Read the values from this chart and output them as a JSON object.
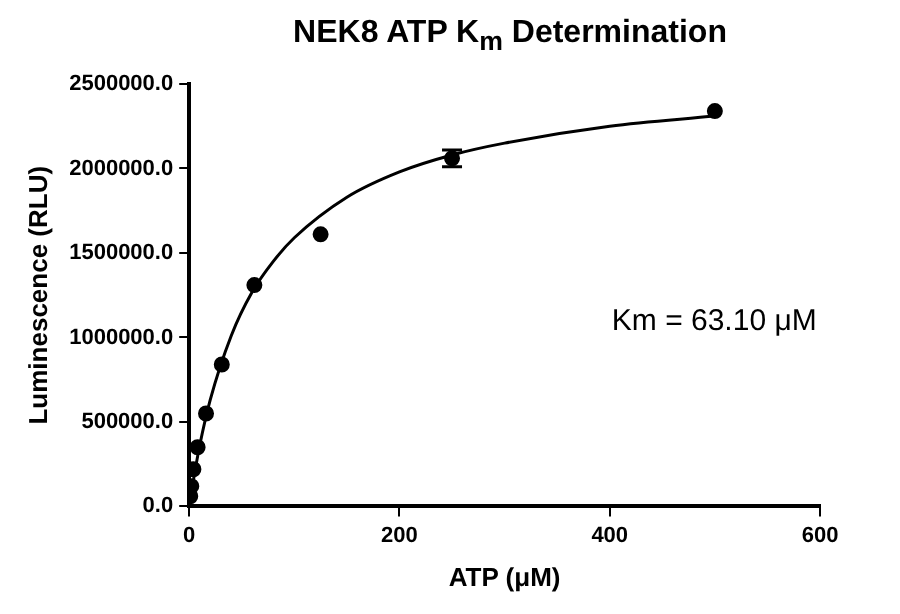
{
  "chart_data": {
    "type": "scatter",
    "title": "NEK8 ATP K$_{m}$ Determination",
    "xlabel": "ATP (μM)",
    "ylabel": "Luminescence (RLU)",
    "annotations": [
      "Km = 63.10 μM"
    ],
    "series": [
      {
        "color": "#000000",
        "marker": "circle",
        "x": [
          1,
          2,
          4,
          8,
          16,
          31,
          62,
          125,
          250,
          500
        ],
        "values": [
          60000,
          120000,
          220000,
          350000,
          550000,
          840000,
          1310000,
          1610000,
          2060000,
          2340000
        ],
        "errors": [
          null,
          null,
          null,
          null,
          null,
          null,
          null,
          null,
          50000,
          null
        ]
      },
      {
        "type": "line",
        "color": "#000000",
        "marker": "none",
        "line_style": "solid",
        "x": [
          0,
          5,
          10,
          20,
          40,
          60,
          80,
          100,
          150,
          200,
          250,
          300,
          400,
          500
        ],
        "values": [
          0,
          190000,
          360000,
          630000,
          1010000,
          1270000,
          1450000,
          1590000,
          1830000,
          1980000,
          2080000,
          2150000,
          2250000,
          2310000
        ]
      }
    ],
    "xlim": [
      0,
      600
    ],
    "xticks": [
      0,
      200,
      400,
      600
    ],
    "ylim": [
      0,
      2500000
    ],
    "yticks": [
      {
        "value": 0,
        "label": "0.0"
      },
      {
        "value": 500000,
        "label": "500000.0"
      },
      {
        "value": 1000000,
        "label": "1000000.0"
      },
      {
        "value": 1500000,
        "label": "1500000.0"
      },
      {
        "value": 2000000,
        "label": "2000000.0"
      },
      {
        "value": 2500000,
        "label": "2500000.0"
      }
    ],
    "grid": false,
    "legend": false
  }
}
